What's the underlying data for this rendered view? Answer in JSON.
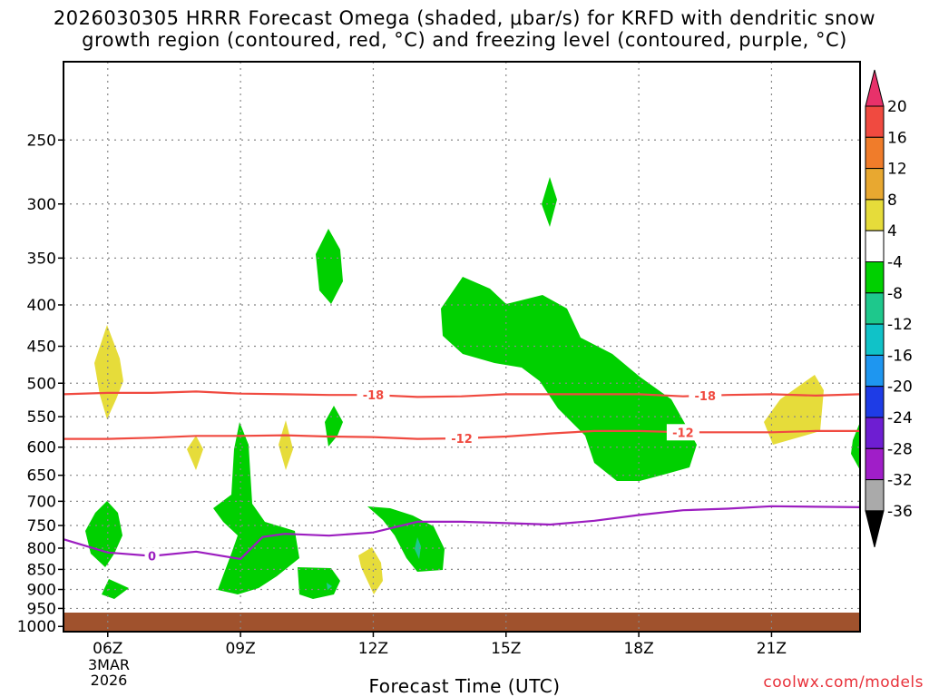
{
  "title": {
    "line1": "2026030305 HRRR Forecast Omega (shaded, μbar/s) for KRFD with dendritic snow",
    "line2": "growth region (contoured, red, °C) and freezing level (contoured, purple, °C)"
  },
  "credit": "coolwx.com/models",
  "chart_data": {
    "type": "contour",
    "xlabel": "Forecast Time (UTC)",
    "x_ticks": [
      "06Z",
      "09Z",
      "12Z",
      "15Z",
      "18Z",
      "21Z"
    ],
    "x_tick_hours": [
      6,
      9,
      12,
      15,
      18,
      21
    ],
    "x_range_hours": [
      5,
      23
    ],
    "date_label": [
      "3MAR",
      "2026"
    ],
    "ylabel": "",
    "y_ticks": [
      250,
      300,
      350,
      400,
      450,
      500,
      550,
      600,
      650,
      700,
      750,
      800,
      850,
      900,
      950,
      1000
    ],
    "y_scale": "log-pressure",
    "y_range": [
      200,
      1015
    ],
    "grid": true,
    "colorbar": {
      "placement": "right",
      "labels": [
        "20",
        "16",
        "12",
        "8",
        "4",
        "-4",
        "-8",
        "-12",
        "-16",
        "-20",
        "-24",
        "-28",
        "-32",
        "-36"
      ],
      "colors": [
        "#e8316a",
        "#f04a40",
        "#f07c2a",
        "#e8a830",
        "#e6dc3a",
        "#ffffff",
        "#00d000",
        "#1ec88c",
        "#10c2c8",
        "#1e96f0",
        "#1e3ce6",
        "#6e1ed2",
        "#a01ec8",
        "#aaaaaa",
        "#000000"
      ]
    },
    "series": [
      {
        "name": "-18",
        "color": "#f04a40",
        "x": [
          5,
          6,
          7,
          8,
          9,
          10,
          11,
          12,
          13,
          14,
          15,
          16,
          17,
          18,
          19,
          20,
          21,
          22,
          23
        ],
        "y": [
          516,
          514,
          514,
          512,
          515,
          516,
          517,
          517,
          520,
          519,
          516,
          516,
          516,
          516,
          519,
          517,
          516,
          518,
          516
        ],
        "labels_at": [
          12,
          19.5
        ]
      },
      {
        "name": "-12",
        "color": "#f04a40",
        "x": [
          5,
          6,
          7,
          8,
          9,
          10,
          11,
          12,
          13,
          14,
          15,
          16,
          17,
          18,
          19,
          20,
          21,
          22,
          23
        ],
        "y": [
          586,
          586,
          584,
          581,
          581,
          580,
          582,
          583,
          586,
          585,
          582,
          577,
          573,
          573,
          575,
          575,
          575,
          573,
          573
        ],
        "labels_at": [
          14,
          19
        ]
      },
      {
        "name": "0",
        "color": "#9c1ec0",
        "x": [
          5,
          6,
          7,
          8,
          9,
          9.5,
          10,
          11,
          12,
          13,
          14,
          15,
          16,
          17,
          18,
          19,
          20,
          21,
          22,
          23
        ],
        "y": [
          780,
          810,
          818,
          808,
          825,
          775,
          768,
          772,
          765,
          742,
          742,
          745,
          748,
          740,
          728,
          718,
          715,
          710,
          711,
          712
        ],
        "labels_at": [
          7
        ]
      }
    ],
    "ground": {
      "from": 990,
      "to": 1015,
      "color": "#a0522d"
    }
  }
}
